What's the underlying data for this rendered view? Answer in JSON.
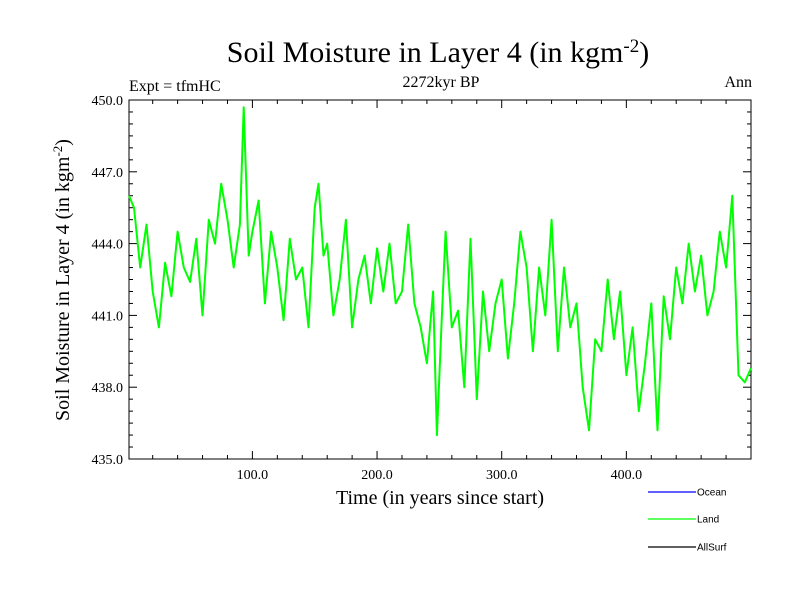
{
  "header": {
    "title_main": "Soil Moisture in Layer 4 (in kgm",
    "title_exp": "-2",
    "title_end": ")",
    "subtitle": "2272kyr BP",
    "left_label": "Expt = tfmHC",
    "right_label": "Ann"
  },
  "axes": {
    "xlabel": "Time (in years since start)",
    "ylabel_main": "Soil Moisture in Layer 4 (in kgm",
    "ylabel_exp": "-2",
    "ylabel_end": ")"
  },
  "legend": {
    "items": [
      {
        "label": "Ocean",
        "color": "#0000ff"
      },
      {
        "label": "Land",
        "color": "#00ff00"
      },
      {
        "label": "AllSurf",
        "color": "#000000"
      }
    ]
  },
  "chart_data": {
    "type": "line",
    "title": "Soil Moisture in Layer 4 (in kgm-2)",
    "subtitle": "2272kyr BP",
    "xlabel": "Time (in years since start)",
    "ylabel": "Soil Moisture in Layer 4 (in kgm-2)",
    "xlim": [
      1,
      500
    ],
    "ylim": [
      435.0,
      450.0
    ],
    "xticks": [
      100,
      200,
      300,
      400
    ],
    "xtick_labels": [
      "100.0",
      "200.0",
      "300.0",
      "400.0"
    ],
    "yticks": [
      435,
      438,
      441,
      444,
      447,
      450
    ],
    "ytick_labels": [
      "435.0",
      "438.0",
      "441.0",
      "444.0",
      "447.0",
      "450.0"
    ],
    "series": [
      {
        "name": "Land",
        "color": "#00ff00",
        "x": [
          1,
          5,
          10,
          15,
          20,
          25,
          30,
          35,
          40,
          45,
          50,
          55,
          60,
          65,
          70,
          75,
          80,
          85,
          90,
          93,
          97,
          100,
          105,
          110,
          115,
          120,
          125,
          130,
          135,
          140,
          145,
          150,
          153,
          157,
          160,
          165,
          170,
          175,
          180,
          185,
          190,
          195,
          200,
          205,
          210,
          215,
          220,
          225,
          230,
          235,
          240,
          245,
          248,
          252,
          255,
          260,
          265,
          270,
          275,
          280,
          285,
          290,
          295,
          300,
          305,
          310,
          315,
          320,
          325,
          330,
          335,
          340,
          345,
          350,
          355,
          360,
          365,
          370,
          375,
          380,
          385,
          390,
          395,
          400,
          405,
          410,
          415,
          420,
          425,
          430,
          435,
          440,
          445,
          450,
          455,
          460,
          465,
          470,
          475,
          480,
          485,
          490,
          495,
          500
        ],
        "values": [
          446.0,
          445.5,
          443.0,
          444.8,
          442.0,
          440.5,
          443.2,
          441.8,
          444.5,
          443.0,
          442.4,
          444.2,
          441.0,
          445.0,
          444.0,
          446.5,
          445.0,
          443.0,
          444.8,
          449.7,
          443.5,
          444.5,
          445.8,
          441.5,
          444.5,
          443.0,
          440.8,
          444.2,
          442.5,
          443.0,
          440.5,
          445.5,
          446.5,
          443.5,
          444.0,
          441.0,
          442.5,
          445.0,
          440.5,
          442.5,
          443.5,
          441.5,
          443.8,
          442.0,
          444.0,
          441.5,
          442.0,
          444.8,
          441.5,
          440.5,
          439.0,
          442.0,
          436.0,
          441.0,
          444.5,
          440.5,
          441.2,
          438.0,
          444.2,
          437.5,
          442.0,
          439.5,
          441.5,
          442.5,
          439.2,
          441.5,
          444.5,
          443.0,
          439.5,
          443.0,
          441.0,
          445.0,
          439.5,
          443.0,
          440.5,
          441.5,
          438.0,
          436.2,
          440.0,
          439.5,
          442.5,
          440.0,
          442.0,
          438.5,
          440.5,
          437.0,
          439.0,
          441.5,
          436.2,
          441.8,
          440.0,
          443.0,
          441.5,
          444.0,
          442.0,
          443.5,
          441.0,
          442.0,
          444.5,
          443.0,
          446.0,
          438.5,
          438.2,
          438.8
        ]
      }
    ],
    "legend": [
      {
        "name": "Ocean",
        "color": "#0000ff"
      },
      {
        "name": "Land",
        "color": "#00ff00"
      },
      {
        "name": "AllSurf",
        "color": "#000000"
      }
    ]
  }
}
